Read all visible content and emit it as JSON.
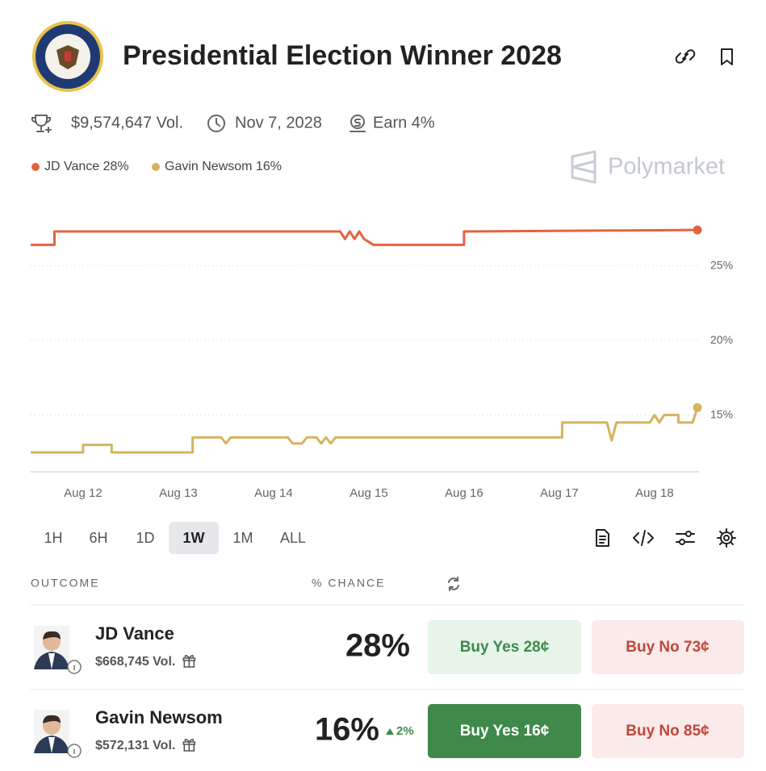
{
  "header": {
    "title": "Presidential Election Winner 2028"
  },
  "stats": {
    "volume": "$9,574,647 Vol.",
    "end_date": "Nov 7, 2028",
    "earn": "Earn 4%"
  },
  "brand": "Polymarket",
  "chart_data": {
    "type": "line",
    "xlim": [
      11.45,
      18.45
    ],
    "xticks": [
      {
        "value": 12,
        "label": "Aug 12"
      },
      {
        "value": 13,
        "label": "Aug 13"
      },
      {
        "value": 14,
        "label": "Aug 14"
      },
      {
        "value": 15,
        "label": "Aug 15"
      },
      {
        "value": 16,
        "label": "Aug 16"
      },
      {
        "value": 17,
        "label": "Aug 17"
      },
      {
        "value": 18,
        "label": "Aug 18"
      }
    ],
    "ylim": [
      11.2,
      29.3
    ],
    "yticks": [
      {
        "value": 25,
        "label": "25%"
      },
      {
        "value": 20,
        "label": "20%"
      },
      {
        "value": 15,
        "label": "15%"
      }
    ],
    "grid": true,
    "series": [
      {
        "name": "JD Vance 28%",
        "color": "#e4633f",
        "x": [
          11.45,
          11.7,
          11.7,
          14.7,
          14.75,
          14.8,
          14.85,
          14.9,
          14.95,
          15.05,
          16.0,
          16.0,
          18.45
        ],
        "values": [
          26.4,
          26.4,
          27.3,
          27.3,
          26.8,
          27.3,
          26.8,
          27.3,
          26.8,
          26.4,
          26.4,
          27.3,
          27.4
        ]
      },
      {
        "name": "Gavin Newsom 16%",
        "color": "#d6b35e",
        "x": [
          11.45,
          12.0,
          12.0,
          12.3,
          12.3,
          13.15,
          13.15,
          13.45,
          13.5,
          13.55,
          14.15,
          14.2,
          14.3,
          14.35,
          14.45,
          14.5,
          14.55,
          14.6,
          14.65,
          17.03,
          17.03,
          17.5,
          17.55,
          17.6,
          17.95,
          18.0,
          18.05,
          18.1,
          18.25,
          18.25,
          18.4,
          18.45
        ],
        "values": [
          12.5,
          12.5,
          13.0,
          13.0,
          12.5,
          12.5,
          13.5,
          13.5,
          13.1,
          13.5,
          13.5,
          13.1,
          13.1,
          13.5,
          13.5,
          13.1,
          13.5,
          13.1,
          13.5,
          13.5,
          14.5,
          14.5,
          13.3,
          14.5,
          14.5,
          15.0,
          14.5,
          15.0,
          15.0,
          14.5,
          14.5,
          15.5
        ]
      }
    ]
  },
  "range_buttons": {
    "options": [
      "1H",
      "6H",
      "1D",
      "1W",
      "1M",
      "ALL"
    ],
    "active": 3
  },
  "table": {
    "columns": [
      "OUTCOME",
      "% CHANCE"
    ],
    "selected_row": 1,
    "rows": [
      {
        "name": "JD Vance",
        "volume": "$668,745 Vol.",
        "chance": "28%",
        "buy_yes": "Buy Yes 28¢",
        "buy_no": "Buy No 73¢"
      },
      {
        "name": "Gavin Newsom",
        "volume": "$572,131 Vol.",
        "chance": "16%",
        "change": "2%",
        "buy_yes": "Buy Yes 16¢",
        "buy_no": "Buy No 85¢"
      }
    ]
  }
}
